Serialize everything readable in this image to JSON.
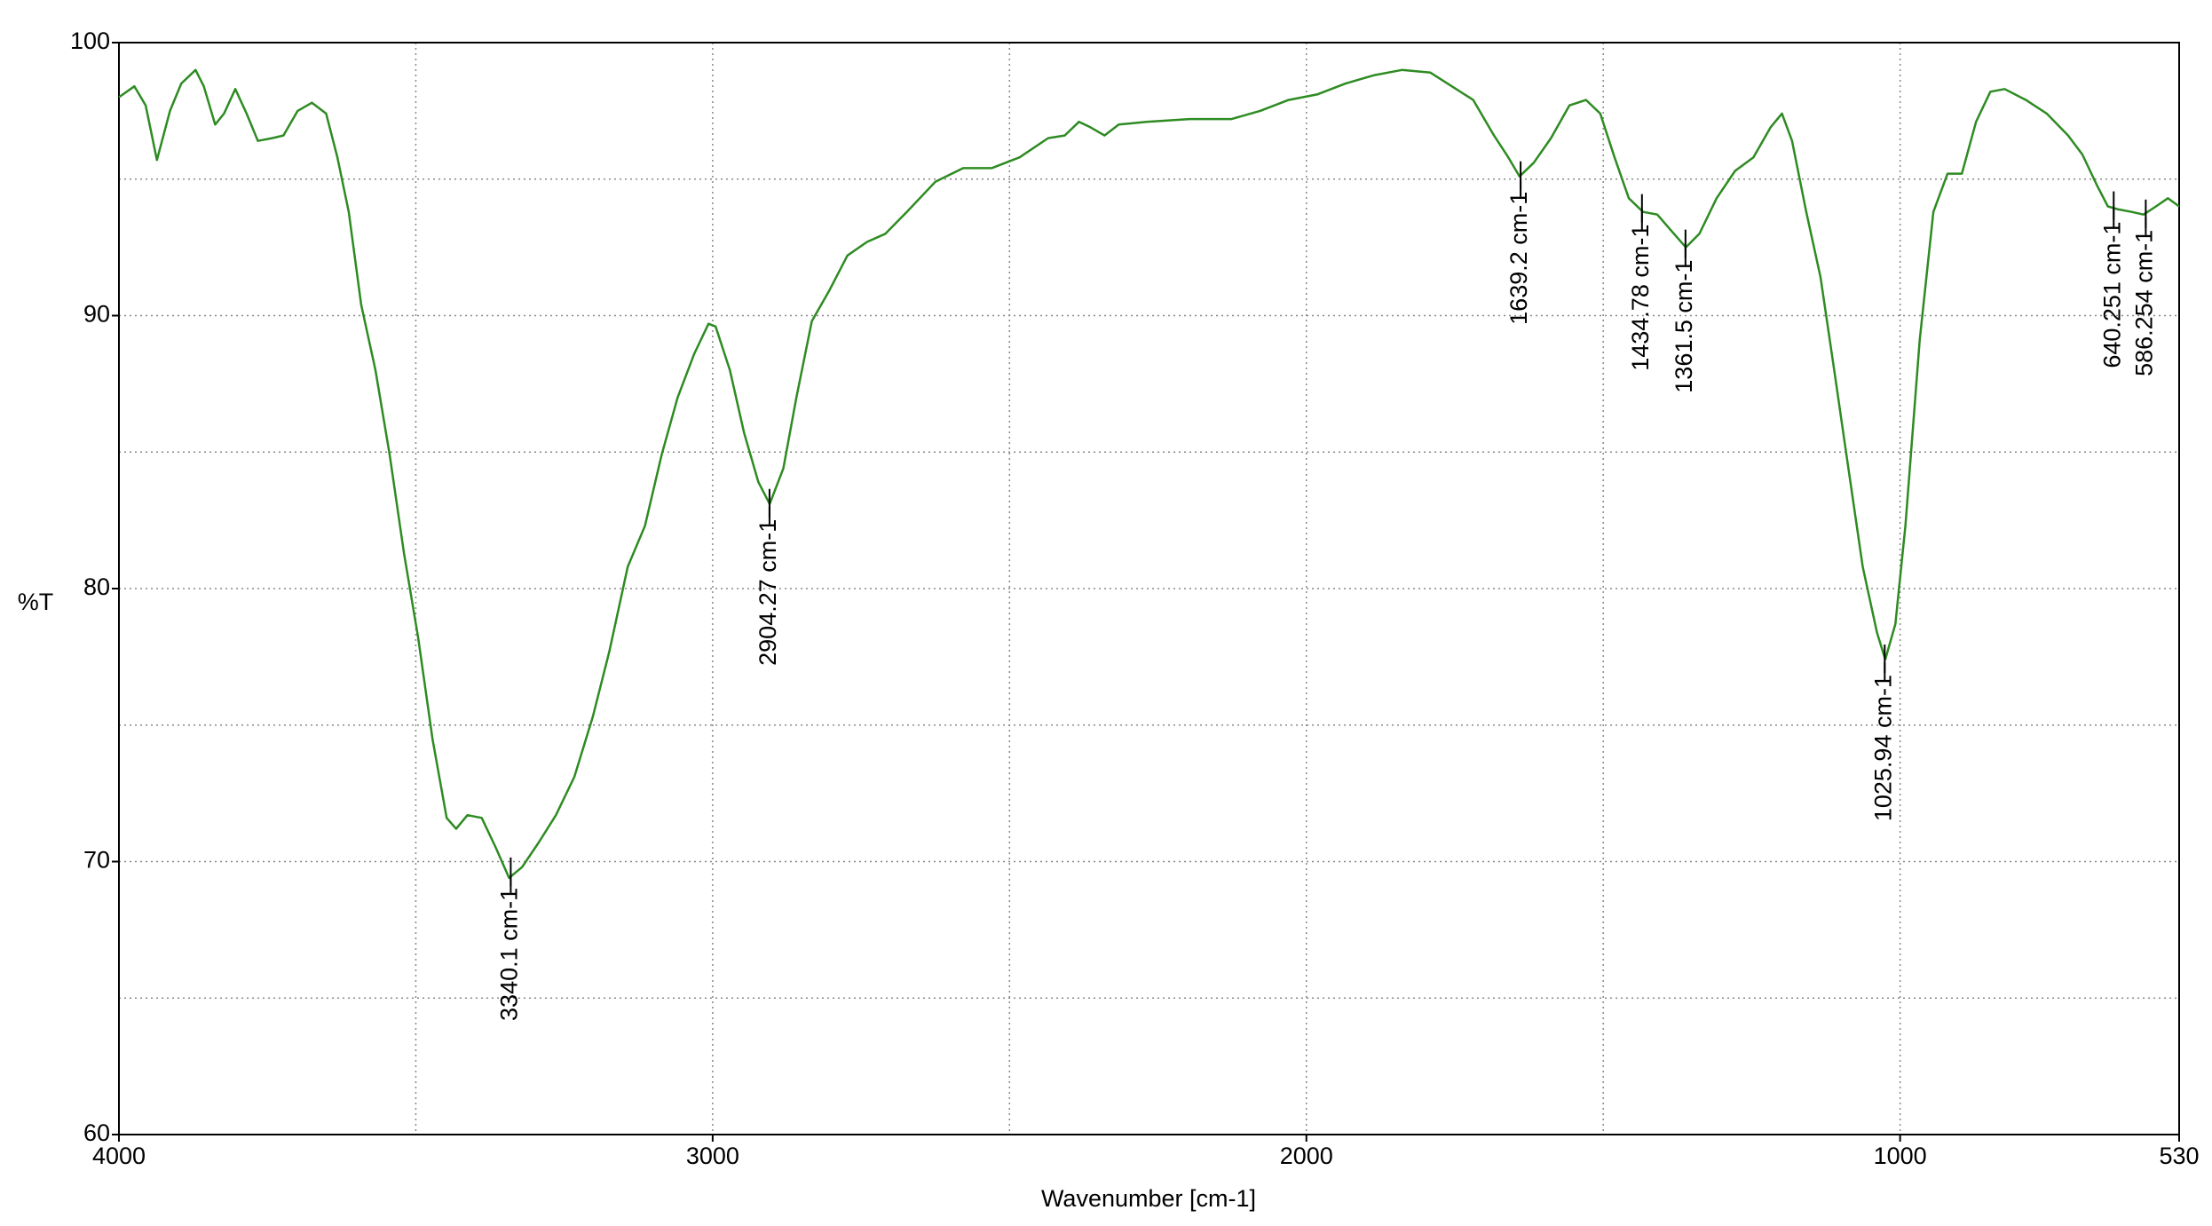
{
  "chart_data": {
    "type": "line",
    "xlabel": "Wavenumber [cm-1]",
    "ylabel": "%T",
    "xlim": [
      4000,
      530
    ],
    "ylim": [
      60,
      100
    ],
    "xticks": [
      4000,
      3000,
      2000,
      1000,
      530
    ],
    "xminor": [
      3500,
      2500,
      1500
    ],
    "yticks": [
      60,
      70,
      80,
      90,
      100
    ],
    "yminor": [
      65,
      75,
      85,
      95
    ],
    "grid": true,
    "series": [
      {
        "color": "#2e8b22",
        "x": [
          4000,
          3974,
          3955,
          3936,
          3914,
          3895,
          3871,
          3857,
          3838,
          3823,
          3804,
          3785,
          3766,
          3742,
          3723,
          3699,
          3675,
          3651,
          3632,
          3613,
          3592,
          3568,
          3544,
          3520,
          3496,
          3472,
          3448,
          3432,
          3413,
          3389,
          3365,
          3343,
          3321,
          3293,
          3264,
          3233,
          3202,
          3174,
          3143,
          3114,
          3086,
          3059,
          3031,
          3007,
          2995,
          2971,
          2947,
          2923,
          2904,
          2881,
          2859,
          2833,
          2804,
          2773,
          2740,
          2709,
          2673,
          2625,
          2578,
          2530,
          2483,
          2435,
          2407,
          2383,
          2364,
          2340,
          2316,
          2269,
          2197,
          2126,
          2078,
          2030,
          1982,
          1934,
          1887,
          1839,
          1791,
          1755,
          1719,
          1684,
          1660,
          1641,
          1617,
          1588,
          1557,
          1529,
          1505,
          1481,
          1457,
          1433,
          1409,
          1385,
          1361,
          1338,
          1309,
          1278,
          1247,
          1218,
          1199,
          1182,
          1158,
          1134,
          1111,
          1087,
          1063,
          1039,
          1025,
          1008,
          991,
          967,
          944,
          920,
          896,
          872,
          848,
          824,
          788,
          753,
          717,
          693,
          669,
          650,
          634,
          610,
          590,
          569,
          549,
          530
        ],
        "values": [
          98.0,
          98.4,
          97.7,
          95.7,
          97.5,
          98.5,
          99.0,
          98.4,
          97.0,
          97.4,
          98.3,
          97.4,
          96.4,
          96.5,
          96.6,
          97.5,
          97.8,
          97.4,
          95.8,
          93.8,
          90.4,
          88.0,
          84.9,
          81.3,
          78.2,
          74.5,
          71.6,
          71.2,
          71.7,
          71.6,
          70.5,
          69.4,
          69.8,
          70.7,
          71.7,
          73.1,
          75.3,
          77.7,
          80.8,
          82.3,
          84.9,
          87.0,
          88.6,
          89.7,
          89.6,
          88.0,
          85.7,
          83.9,
          83.1,
          84.4,
          87.0,
          89.8,
          90.9,
          92.2,
          92.7,
          93.0,
          93.8,
          94.9,
          95.4,
          95.4,
          95.8,
          96.5,
          96.6,
          97.1,
          96.9,
          96.6,
          97.0,
          97.1,
          97.2,
          97.2,
          97.5,
          97.9,
          98.1,
          98.5,
          98.8,
          99.0,
          98.9,
          98.4,
          97.9,
          96.6,
          95.8,
          95.1,
          95.6,
          96.5,
          97.7,
          97.9,
          97.4,
          95.8,
          94.3,
          93.8,
          93.7,
          93.1,
          92.5,
          93.0,
          94.3,
          95.3,
          95.8,
          96.9,
          97.4,
          96.4,
          93.8,
          91.4,
          88.0,
          84.4,
          80.8,
          78.4,
          77.4,
          78.7,
          82.3,
          89.1,
          93.8,
          95.2,
          95.2,
          97.1,
          98.2,
          98.3,
          97.9,
          97.4,
          96.6,
          95.9,
          94.8,
          94.0,
          93.9,
          93.8,
          93.7,
          94.0,
          94.3,
          94.0
        ]
      }
    ],
    "annotations": [
      {
        "x": 3340.1,
        "y": 69.5,
        "label": "3340.1 cm-1"
      },
      {
        "x": 2904.27,
        "y": 83.0,
        "label": "2904.27 cm-1"
      },
      {
        "x": 1639.2,
        "y": 95.0,
        "label": "1639.2 cm-1"
      },
      {
        "x": 1434.78,
        "y": 93.8,
        "label": "1434.78 cm-1"
      },
      {
        "x": 1361.5,
        "y": 92.5,
        "label": "1361.5 cm-1"
      },
      {
        "x": 1025.94,
        "y": 77.3,
        "label": "1025.94 cm-1"
      },
      {
        "x": 640.251,
        "y": 93.9,
        "label": "640.251 cm-1"
      },
      {
        "x": 586.254,
        "y": 93.6,
        "label": "586.254 cm-1"
      }
    ]
  }
}
